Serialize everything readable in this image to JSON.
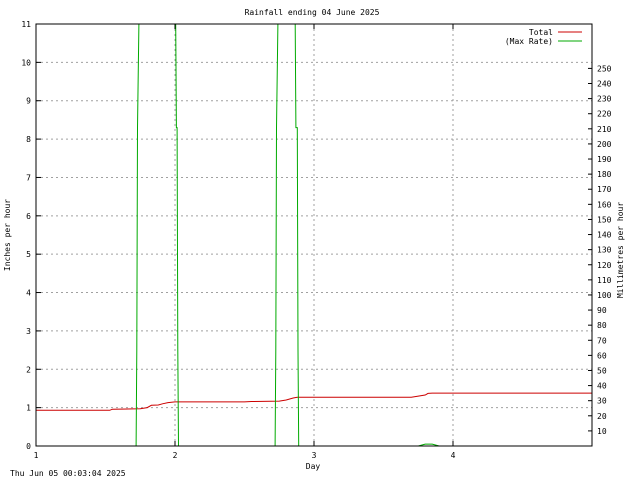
{
  "chart_data": {
    "type": "line",
    "title": "Rainfall ending 04 June 2025",
    "xlabel": "Day",
    "ylabel": "Inches per hour",
    "y2label": "Millimetres per hour",
    "xlim": [
      1,
      5.0
    ],
    "ylim": [
      0,
      11
    ],
    "y2lim": [
      0,
      279.4
    ],
    "x_ticks": [
      1,
      2,
      3,
      4
    ],
    "y_ticks": [
      0,
      1,
      2,
      3,
      4,
      5,
      6,
      7,
      8,
      9,
      10,
      11
    ],
    "y2_ticks": [
      10,
      20,
      30,
      40,
      50,
      60,
      70,
      80,
      90,
      100,
      110,
      120,
      130,
      140,
      150,
      160,
      170,
      180,
      190,
      200,
      210,
      220,
      230,
      240,
      250
    ],
    "grid": true,
    "legend_position": "top-right",
    "series": [
      {
        "name": "Total",
        "color": "#cc0000",
        "x": [
          1.0,
          1.53,
          1.55,
          1.75,
          1.8,
          1.83,
          1.88,
          1.91,
          1.95,
          2.0,
          2.5,
          2.55,
          2.75,
          2.8,
          2.85,
          2.88,
          3.5,
          3.7,
          3.75,
          3.8,
          3.82,
          3.85,
          5.0
        ],
        "y": [
          0.93,
          0.93,
          0.96,
          0.97,
          1.0,
          1.06,
          1.07,
          1.1,
          1.13,
          1.15,
          1.15,
          1.16,
          1.17,
          1.2,
          1.25,
          1.27,
          1.27,
          1.27,
          1.3,
          1.33,
          1.37,
          1.38,
          1.38
        ]
      },
      {
        "name": "(Max Rate)",
        "color": "#00aa00",
        "x": [
          1.0,
          1.72,
          1.725,
          1.73,
          1.74,
          1.745,
          1.75,
          2.0,
          2.005,
          2.01,
          2.015,
          2.02,
          2.025,
          2.72,
          2.725,
          2.73,
          2.74,
          2.745,
          2.75,
          2.86,
          2.865,
          2.87,
          2.88,
          2.885,
          2.89,
          3.75,
          3.8,
          3.85,
          3.9,
          5.0
        ],
        "y": [
          0,
          0,
          2.5,
          8.3,
          11,
          11,
          11,
          11,
          11,
          8.3,
          8.3,
          2.5,
          0,
          0,
          2.5,
          8.3,
          11,
          11,
          11,
          11,
          11,
          8.3,
          8.3,
          2.5,
          0,
          0,
          0.05,
          0.05,
          0,
          0
        ]
      }
    ]
  },
  "footer": {
    "timestamp": "Thu Jun 05 00:03:04 2025"
  }
}
